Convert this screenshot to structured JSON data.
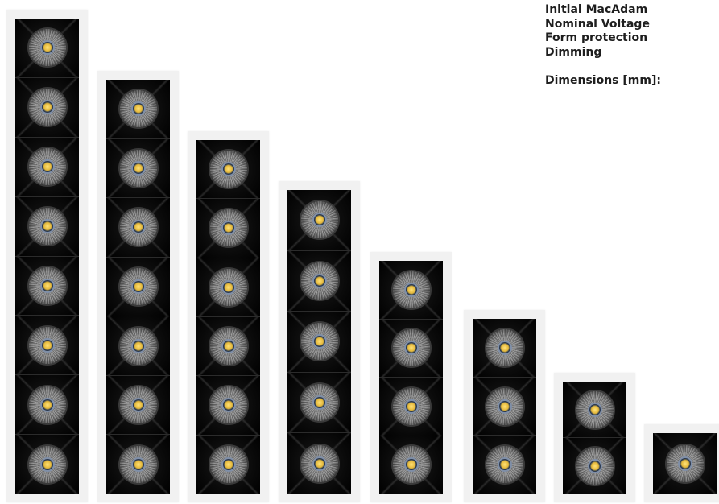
{
  "specs": {
    "initial_macadam": "Initial MacAdam",
    "nominal_voltage": "Nominal Voltage",
    "form_protection": "Form protection",
    "dimming": "Dimming",
    "dimensions": "Dimensions [mm]:"
  },
  "luminaires": [
    {
      "name": "luminaire-8-head",
      "modules": 8
    },
    {
      "name": "luminaire-7-head",
      "modules": 7
    },
    {
      "name": "luminaire-6-head",
      "modules": 6
    },
    {
      "name": "luminaire-5-head",
      "modules": 5
    },
    {
      "name": "luminaire-4-head",
      "modules": 4
    },
    {
      "name": "luminaire-3-head",
      "modules": 3
    },
    {
      "name": "luminaire-2-head",
      "modules": 2
    },
    {
      "name": "luminaire-1-head",
      "modules": 1
    }
  ],
  "colors": {
    "housing": "#050505",
    "trim": "#f1f1f1",
    "led": "#ffe27a",
    "text": "#1e1e1e"
  }
}
